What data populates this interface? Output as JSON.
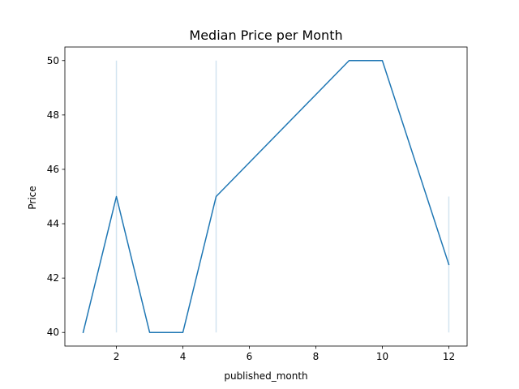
{
  "chart_data": {
    "type": "line",
    "title": "Median Price per Month",
    "xlabel": "published_month",
    "ylabel": "Price",
    "xlim": [
      0.45,
      12.55
    ],
    "ylim": [
      39.5,
      50.5
    ],
    "xticks": [
      2,
      4,
      6,
      8,
      10,
      12
    ],
    "yticks": [
      40,
      42,
      44,
      46,
      48,
      50
    ],
    "xtick_labels": [
      "2",
      "4",
      "6",
      "8",
      "10",
      "12"
    ],
    "ytick_labels": [
      "40",
      "42",
      "44",
      "46",
      "48",
      "50"
    ],
    "grid": false,
    "series": [
      {
        "name": "Price",
        "color": "#1f77b4",
        "x": [
          1,
          2,
          3,
          4,
          5,
          9,
          10,
          12
        ],
        "y": [
          40,
          45,
          40,
          40,
          45,
          50,
          50,
          42.5
        ]
      }
    ],
    "error_bands": [
      {
        "x": 2,
        "low": 40,
        "high": 50
      },
      {
        "x": 5,
        "low": 40,
        "high": 50
      },
      {
        "x": 12,
        "low": 40,
        "high": 45
      }
    ],
    "band_color": "#1f77b4"
  }
}
